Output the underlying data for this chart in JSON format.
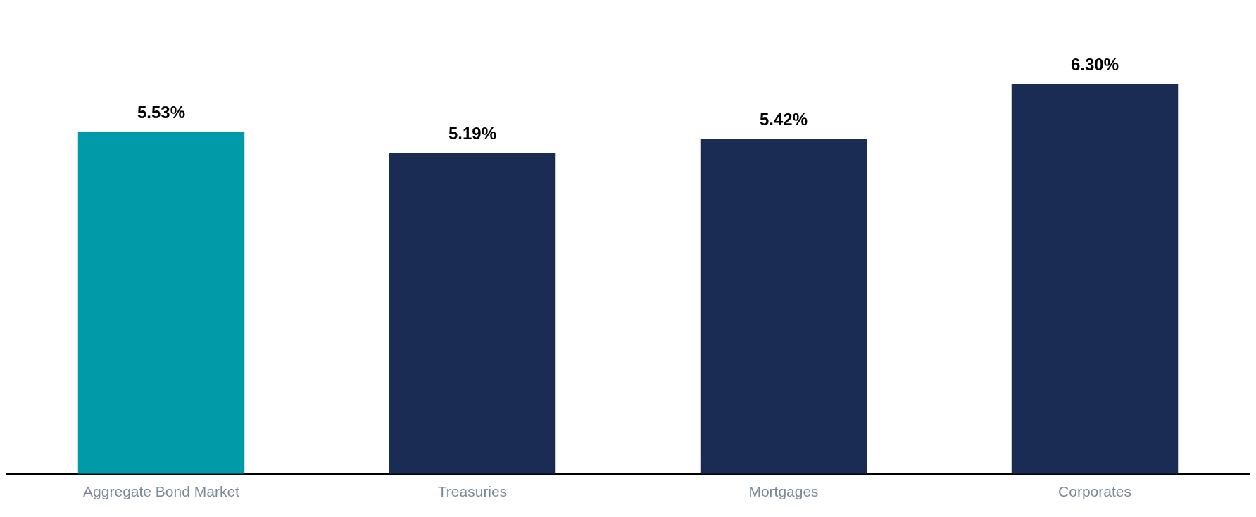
{
  "chart_data": {
    "type": "bar",
    "categories": [
      "Aggregate Bond Market",
      "Treasuries",
      "Mortgages",
      "Corporates"
    ],
    "values": [
      5.53,
      5.19,
      5.42,
      6.3
    ],
    "colors": [
      "#009aa9",
      "#1a2b54",
      "#1a2b54",
      "#1a2b54"
    ],
    "value_labels": [
      "5.53%",
      "5.19%",
      "5.42%",
      "6.30%"
    ],
    "grid": false,
    "legend": false
  }
}
